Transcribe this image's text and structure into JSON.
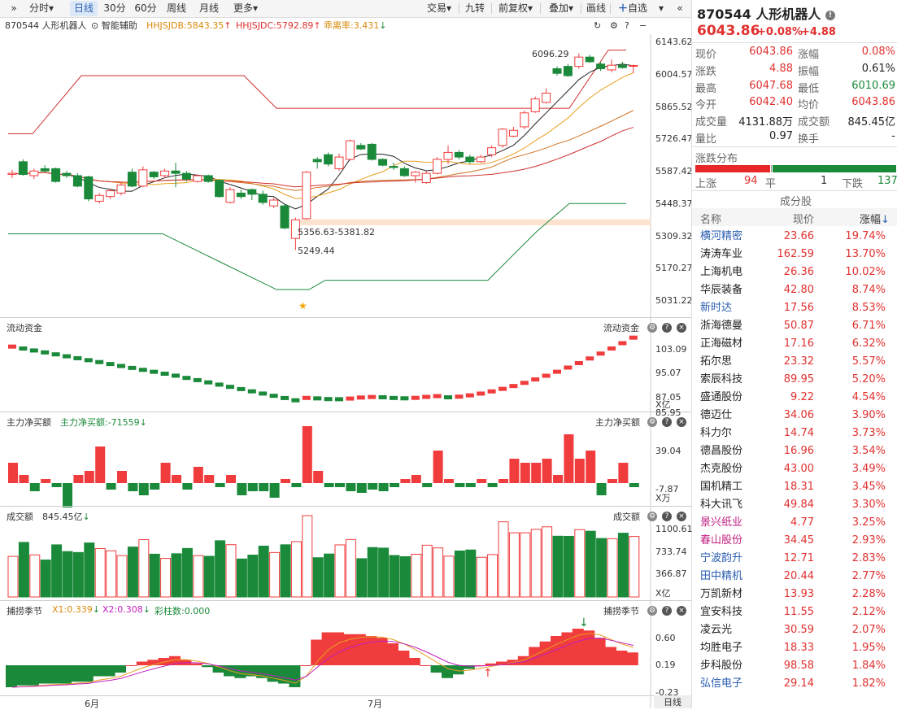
{
  "toolbar": {
    "periods": [
      "分时",
      "日线",
      "30分",
      "60分",
      "周线",
      "月线",
      "更多"
    ],
    "active": "日线",
    "actions": [
      "交易",
      "九转",
      "前复权",
      "叠加",
      "画线",
      "自选"
    ]
  },
  "chart_header": {
    "name": "870544 人形机器人",
    "assist": "智能辅助",
    "hhjsjdb": "HHJSJDB:5843.35",
    "hhjsjdc": "HHJSJDC:5792.89",
    "deviation": "乖离率:3.431"
  },
  "price_axis": [
    "6143.62",
    "6004.57",
    "5865.52",
    "5726.47",
    "5587.42",
    "5448.37",
    "5309.32",
    "5170.27",
    "5031.22"
  ],
  "annotations": {
    "high": "6096.29",
    "range": "5356.63-5381.82",
    "low": "5249.44"
  },
  "panels": {
    "flow": {
      "title": "流动资金",
      "right_title": "流动资金",
      "axis": [
        "103.09",
        "95.07",
        "87.05"
      ],
      "unit": "X亿"
    },
    "main_net": {
      "title": "主力净买额",
      "value": "主力净买额:-71559",
      "right_title": "主力净买额",
      "axis": [
        "85.95",
        "39.04",
        "-7.87"
      ],
      "unit": "X万"
    },
    "turnover": {
      "title": "成交额",
      "value": "845.45亿",
      "right_title": "成交额",
      "axis": [
        "1100.61",
        "733.74",
        "366.87"
      ],
      "unit": "X亿"
    },
    "season": {
      "title": "捕捞季节",
      "x1": "X1:0.339",
      "x2": "X2:0.308",
      "bar": "彩柱数:0.000",
      "right_title": "捕捞季节",
      "axis": [
        "0.60",
        "0.19",
        "-0.23"
      ]
    }
  },
  "x_axis": {
    "labels": [
      "6月",
      "7月"
    ],
    "period": "日线"
  },
  "quote": {
    "code_name": "870544 人形机器人",
    "price": "6043.86",
    "pct": "+0.08%",
    "chg": "+4.88",
    "rows": [
      {
        "l1": "现价",
        "v1": "6043.86",
        "l2": "涨幅",
        "v2": "0.08%",
        "c1": "red",
        "c2": "red"
      },
      {
        "l1": "涨跌",
        "v1": "4.88",
        "l2": "振幅",
        "v2": "0.61%",
        "c1": "red",
        "c2": "dark"
      },
      {
        "l1": "最高",
        "v1": "6047.68",
        "l2": "最低",
        "v2": "6010.69",
        "c1": "red",
        "c2": "green"
      },
      {
        "l1": "今开",
        "v1": "6042.40",
        "l2": "均价",
        "v2": "6043.86",
        "c1": "red",
        "c2": "red"
      },
      {
        "l1": "成交量",
        "v1": "4131.88万",
        "l2": "成交额",
        "v2": "845.45亿",
        "c1": "dark",
        "c2": "dark"
      },
      {
        "l1": "量比",
        "v1": "0.97",
        "l2": "换手",
        "v2": "-",
        "c1": "dark",
        "c2": "dark"
      }
    ]
  },
  "distribution": {
    "title": "涨跌分布",
    "up_label": "上涨",
    "up": "94",
    "flat_label": "平",
    "flat": "1",
    "down_label": "下跌",
    "down": "137"
  },
  "constituents": {
    "title": "成分股",
    "headers": [
      "名称",
      "现价",
      "涨幅"
    ],
    "rows": [
      {
        "name": "横河精密",
        "price": "23.66",
        "pct": "19.74%",
        "nc": "blue"
      },
      {
        "name": "涛涛车业",
        "price": "162.59",
        "pct": "13.70%",
        "nc": "dark"
      },
      {
        "name": "上海机电",
        "price": "26.36",
        "pct": "10.02%",
        "nc": "dark"
      },
      {
        "name": "华辰装备",
        "price": "42.80",
        "pct": "8.74%",
        "nc": "dark"
      },
      {
        "name": "新时达",
        "price": "17.56",
        "pct": "8.53%",
        "nc": "blue"
      },
      {
        "name": "浙海德曼",
        "price": "50.87",
        "pct": "6.71%",
        "nc": "dark"
      },
      {
        "name": "正海磁材",
        "price": "17.16",
        "pct": "6.32%",
        "nc": "dark"
      },
      {
        "name": "拓尔思",
        "price": "23.32",
        "pct": "5.57%",
        "nc": "dark"
      },
      {
        "name": "索辰科技",
        "price": "89.95",
        "pct": "5.20%",
        "nc": "dark"
      },
      {
        "name": "盛通股份",
        "price": "9.22",
        "pct": "4.54%",
        "nc": "dark"
      },
      {
        "name": "德迈仕",
        "price": "34.06",
        "pct": "3.90%",
        "nc": "dark"
      },
      {
        "name": "科力尔",
        "price": "14.74",
        "pct": "3.73%",
        "nc": "dark"
      },
      {
        "name": "德昌股份",
        "price": "16.96",
        "pct": "3.54%",
        "nc": "dark"
      },
      {
        "name": "杰克股份",
        "price": "43.00",
        "pct": "3.49%",
        "nc": "dark"
      },
      {
        "name": "国机精工",
        "price": "18.31",
        "pct": "3.45%",
        "nc": "dark"
      },
      {
        "name": "科大讯飞",
        "price": "49.84",
        "pct": "3.30%",
        "nc": "dark"
      },
      {
        "name": "景兴纸业",
        "price": "4.77",
        "pct": "3.25%",
        "nc": "pink"
      },
      {
        "name": "春山股份",
        "price": "34.45",
        "pct": "2.93%",
        "nc": "pink"
      },
      {
        "name": "宁波韵升",
        "price": "12.71",
        "pct": "2.83%",
        "nc": "blue"
      },
      {
        "name": "田中精机",
        "price": "20.44",
        "pct": "2.77%",
        "nc": "blue"
      },
      {
        "name": "万凯新材",
        "price": "13.93",
        "pct": "2.28%",
        "nc": "dark"
      },
      {
        "name": "宜安科技",
        "price": "11.55",
        "pct": "2.12%",
        "nc": "dark"
      },
      {
        "name": "凌云光",
        "price": "30.59",
        "pct": "2.07%",
        "nc": "dark"
      },
      {
        "name": "均胜电子",
        "price": "18.33",
        "pct": "1.95%",
        "nc": "dark"
      },
      {
        "name": "步科股份",
        "price": "98.58",
        "pct": "1.84%",
        "nc": "dark"
      },
      {
        "name": "弘信电子",
        "price": "29.14",
        "pct": "1.82%",
        "nc": "blue"
      }
    ]
  },
  "colors": {
    "up": "#f03c3c",
    "down": "#1a8a3a",
    "bg": "#ffffff",
    "accent": "#2a5db0"
  },
  "chart_data": {
    "type": "candlestick",
    "price_range": [
      5031.22,
      6143.62
    ],
    "candles": [
      [
        5575,
        5580,
        5595,
        5560
      ],
      [
        5630,
        5575,
        5640,
        5570
      ],
      [
        5570,
        5590,
        5600,
        5555
      ],
      [
        5600,
        5590,
        5615,
        5585
      ],
      [
        5600,
        5545,
        5605,
        5540
      ],
      [
        5580,
        5570,
        5590,
        5560
      ],
      [
        5570,
        5525,
        5580,
        5520
      ],
      [
        5565,
        5470,
        5570,
        5460
      ],
      [
        5460,
        5485,
        5495,
        5450
      ],
      [
        5480,
        5505,
        5515,
        5470
      ],
      [
        5495,
        5530,
        5540,
        5485
      ],
      [
        5585,
        5525,
        5600,
        5520
      ],
      [
        5525,
        5595,
        5610,
        5520
      ],
      [
        5585,
        5565,
        5590,
        5555
      ],
      [
        5570,
        5590,
        5600,
        5560
      ],
      [
        5590,
        5580,
        5625,
        5520
      ],
      [
        5580,
        5555,
        5590,
        5545
      ],
      [
        5545,
        5570,
        5575,
        5540
      ],
      [
        5570,
        5545,
        5575,
        5540
      ],
      [
        5550,
        5480,
        5555,
        5475
      ],
      [
        5455,
        5510,
        5520,
        5450
      ],
      [
        5495,
        5480,
        5510,
        5470
      ],
      [
        5510,
        5490,
        5515,
        5465
      ],
      [
        5490,
        5455,
        5505,
        5445
      ],
      [
        5440,
        5465,
        5475,
        5430
      ],
      [
        5440,
        5345,
        5450,
        5340
      ],
      [
        5300,
        5380,
        5390,
        5250
      ],
      [
        5385,
        5585,
        5590,
        5380
      ],
      [
        5640,
        5630,
        5650,
        5600
      ],
      [
        5660,
        5620,
        5670,
        5610
      ],
      [
        5600,
        5650,
        5665,
        5590
      ],
      [
        5640,
        5720,
        5725,
        5635
      ],
      [
        5700,
        5685,
        5710,
        5680
      ],
      [
        5705,
        5640,
        5710,
        5635
      ],
      [
        5640,
        5615,
        5645,
        5610
      ],
      [
        5610,
        5605,
        5625,
        5595
      ],
      [
        5600,
        5570,
        5610,
        5565
      ],
      [
        5570,
        5585,
        5590,
        5540
      ],
      [
        5540,
        5580,
        5590,
        5535
      ],
      [
        5580,
        5640,
        5650,
        5575
      ],
      [
        5640,
        5670,
        5700,
        5620
      ],
      [
        5670,
        5650,
        5680,
        5640
      ],
      [
        5650,
        5630,
        5660,
        5620
      ],
      [
        5630,
        5650,
        5660,
        5625
      ],
      [
        5660,
        5690,
        5700,
        5650
      ],
      [
        5700,
        5770,
        5775,
        5690
      ],
      [
        5740,
        5765,
        5780,
        5735
      ],
      [
        5780,
        5840,
        5850,
        5770
      ],
      [
        5845,
        5900,
        5910,
        5840
      ],
      [
        5885,
        5925,
        5945,
        5880
      ],
      [
        6030,
        6010,
        6040,
        6000
      ],
      [
        6040,
        6000,
        6050,
        5995
      ],
      [
        6040,
        6080,
        6096.29,
        6030
      ],
      [
        6080,
        6060,
        6090,
        6055
      ],
      [
        6050,
        6030,
        6060,
        6020
      ],
      [
        6025,
        6045,
        6070,
        6015
      ],
      [
        6045,
        6035,
        6060,
        6030
      ],
      [
        6042.4,
        6043.86,
        6047.68,
        6010.69
      ]
    ]
  }
}
